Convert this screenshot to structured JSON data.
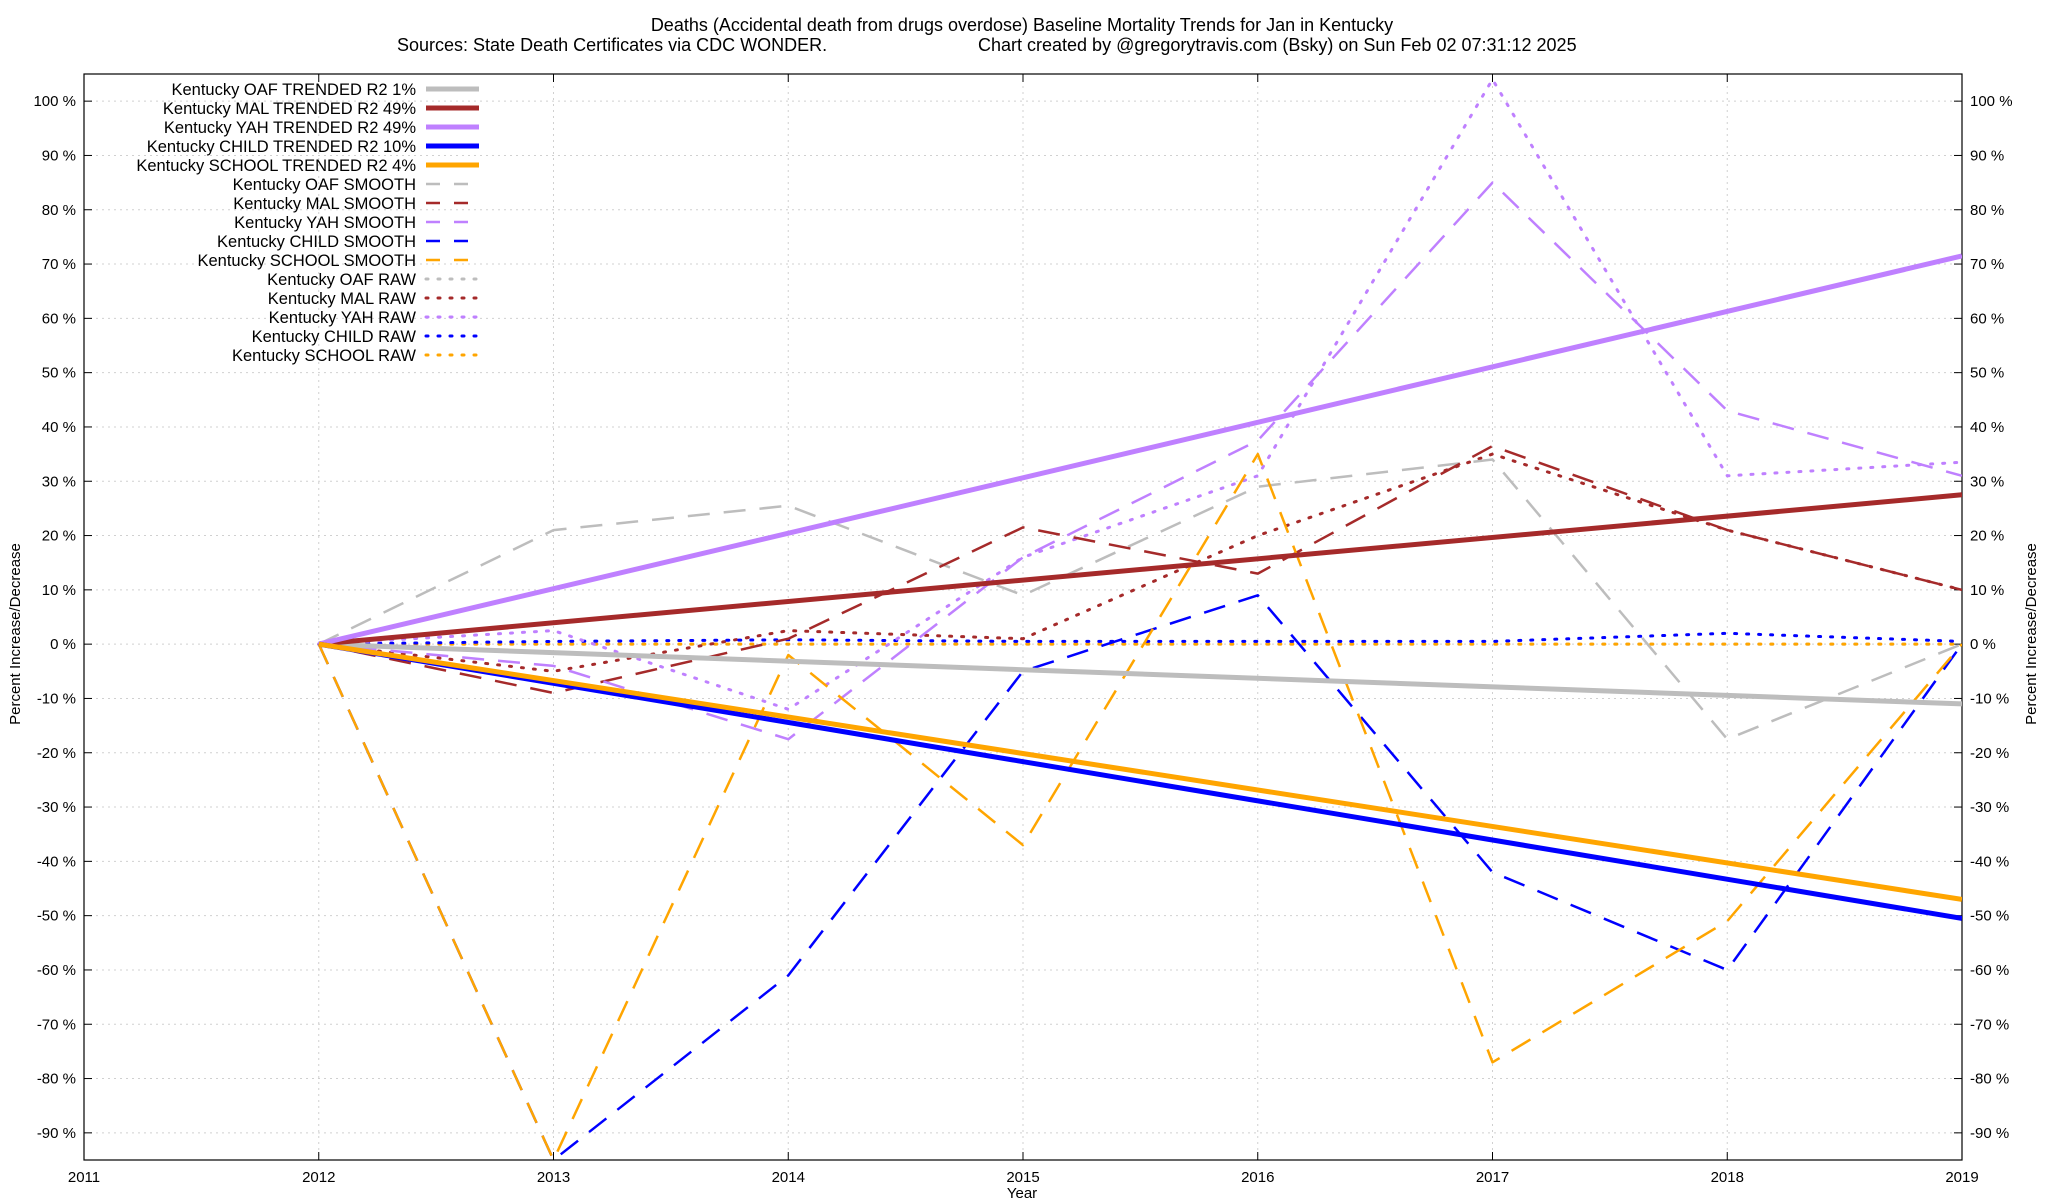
{
  "chart_data": {
    "type": "line",
    "title_line1": "Deaths (Accidental death from drugs overdose)  Baseline Mortality Trends for Jan in Kentucky",
    "title_line2_left": "Sources: State Death Certificates via CDC WONDER.",
    "title_line2_right": "Chart created by @gregorytravis.com (Bsky) on Sun Feb 02 07:31:12 2025",
    "xlabel": "Year",
    "ylabel_left": "Percent Increase/Decrease",
    "ylabel_right": "Percent Increase/Decrease",
    "xlim": [
      2011,
      2019
    ],
    "ylim": [
      -95,
      105
    ],
    "xticks": [
      "2011",
      "2012",
      "2013",
      "2014",
      "2015",
      "2016",
      "2017",
      "2018",
      "2019"
    ],
    "yticks": [
      {
        "value": 100,
        "label": "100 %"
      },
      {
        "value": 90,
        "label": "90 %"
      },
      {
        "value": 80,
        "label": "80 %"
      },
      {
        "value": 70,
        "label": "70 %"
      },
      {
        "value": 60,
        "label": "60 %"
      },
      {
        "value": 50,
        "label": "50 %"
      },
      {
        "value": 40,
        "label": "40 %"
      },
      {
        "value": 30,
        "label": "30 %"
      },
      {
        "value": 20,
        "label": "20 %"
      },
      {
        "value": 10,
        "label": "10 %"
      },
      {
        "value": 0,
        "label": "0 %"
      },
      {
        "value": -10,
        "label": "-10 %"
      },
      {
        "value": -20,
        "label": "-20 %"
      },
      {
        "value": -30,
        "label": "-30 %"
      },
      {
        "value": -40,
        "label": "-40 %"
      },
      {
        "value": -50,
        "label": "-50 %"
      },
      {
        "value": -60,
        "label": "-60 %"
      },
      {
        "value": -70,
        "label": "-70 %"
      },
      {
        "value": -80,
        "label": "-80 %"
      },
      {
        "value": -90,
        "label": "-90 %"
      }
    ],
    "grid": true,
    "legend_position": "top-left",
    "series": [
      {
        "name": "Kentucky OAF TRENDED R2  1%",
        "color": "#bdbdbd",
        "style": "solid",
        "x": [
          2012,
          2019
        ],
        "y": [
          0,
          -11
        ]
      },
      {
        "name": "Kentucky MAL TRENDED R2  49%",
        "color": "#a52a2a",
        "style": "solid",
        "x": [
          2012,
          2019
        ],
        "y": [
          0,
          27.5
        ]
      },
      {
        "name": "Kentucky YAH TRENDED R2  49%",
        "color": "#bf80ff",
        "style": "solid",
        "x": [
          2012,
          2019
        ],
        "y": [
          0,
          71.5
        ]
      },
      {
        "name": "Kentucky CHILD TRENDED R2  10%",
        "color": "#0000ff",
        "style": "solid",
        "x": [
          2012,
          2019
        ],
        "y": [
          0,
          -50.5
        ]
      },
      {
        "name": "Kentucky SCHOOL TRENDED R2  4%",
        "color": "#ffa500",
        "style": "solid",
        "x": [
          2012,
          2019
        ],
        "y": [
          0,
          -47
        ]
      },
      {
        "name": "Kentucky OAF SMOOTH",
        "color": "#bdbdbd",
        "style": "dashed",
        "x": [
          2012,
          2013,
          2014,
          2015,
          2016,
          2017,
          2018,
          2019
        ],
        "y": [
          0,
          21,
          25.5,
          9,
          29,
          34,
          -17.5,
          0
        ]
      },
      {
        "name": "Kentucky MAL SMOOTH",
        "color": "#a52a2a",
        "style": "dashed",
        "x": [
          2012,
          2013,
          2014,
          2015,
          2016,
          2017,
          2018,
          2019
        ],
        "y": [
          0,
          -9,
          1,
          21.5,
          13,
          36.5,
          21,
          10
        ]
      },
      {
        "name": "Kentucky YAH SMOOTH",
        "color": "#bf80ff",
        "style": "dashed",
        "x": [
          2012,
          2013,
          2014,
          2015,
          2016,
          2017,
          2018,
          2019
        ],
        "y": [
          0,
          -4,
          -17.5,
          16,
          37.5,
          85,
          43,
          31
        ]
      },
      {
        "name": "Kentucky CHILD SMOOTH",
        "color": "#0000ff",
        "style": "dashed",
        "x": [
          2012,
          2013,
          2014,
          2015,
          2016,
          2017,
          2018,
          2019
        ],
        "y": [
          0,
          -95,
          -61,
          -5,
          9,
          -42,
          -60,
          0
        ]
      },
      {
        "name": "Kentucky SCHOOL SMOOTH",
        "color": "#ffa500",
        "style": "dashed",
        "x": [
          2012,
          2013,
          2014,
          2015,
          2016,
          2017,
          2018,
          2019
        ],
        "y": [
          0,
          -95,
          -2,
          -37,
          35,
          -77,
          -51,
          0
        ]
      },
      {
        "name": "Kentucky OAF RAW",
        "color": "#bdbdbd",
        "style": "dotted",
        "x": [
          2012,
          2013,
          2014,
          2015,
          2016,
          2017,
          2018,
          2019
        ],
        "y": [
          0,
          0,
          0,
          0,
          0,
          0,
          0,
          0
        ]
      },
      {
        "name": "Kentucky MAL RAW",
        "color": "#a52a2a",
        "style": "dotted",
        "x": [
          2012,
          2013,
          2014,
          2015,
          2016,
          2017,
          2018,
          2019
        ],
        "y": [
          0,
          -5,
          2.5,
          1,
          20,
          35,
          21,
          10
        ]
      },
      {
        "name": "Kentucky YAH RAW",
        "color": "#bf80ff",
        "style": "dotted",
        "x": [
          2012,
          2013,
          2014,
          2015,
          2016,
          2017,
          2018,
          2019
        ],
        "y": [
          0,
          2.5,
          -12,
          16,
          31,
          104,
          31,
          33.5
        ]
      },
      {
        "name": "Kentucky CHILD RAW",
        "color": "#0000ff",
        "style": "dotted",
        "x": [
          2012,
          2013,
          2014,
          2015,
          2016,
          2017,
          2018,
          2019
        ],
        "y": [
          0,
          0.5,
          0.8,
          0.5,
          0.5,
          0.5,
          2,
          0.5
        ]
      },
      {
        "name": "Kentucky SCHOOL RAW",
        "color": "#ffa500",
        "style": "dotted",
        "x": [
          2012,
          2013,
          2014,
          2015,
          2016,
          2017,
          2018,
          2019
        ],
        "y": [
          0,
          0,
          0,
          0,
          0,
          0,
          0,
          0
        ]
      }
    ]
  }
}
